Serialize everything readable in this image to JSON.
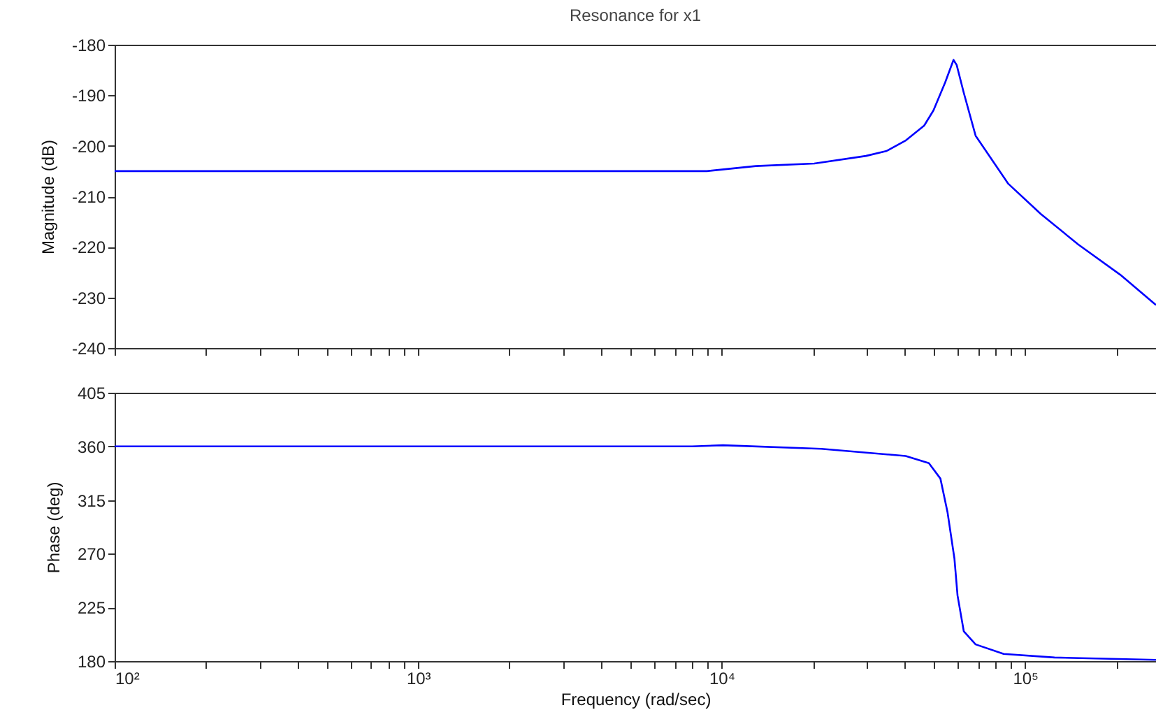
{
  "chart_data": [
    {
      "type": "line",
      "title": "Resonance for x1",
      "ylabel": "Magnitude (dB)",
      "log": "x",
      "tick_labels": "y",
      "color": "#0000ff",
      "x": [
        100,
        8950,
        12970,
        20200,
        29900,
        35000,
        40300,
        46500,
        49900,
        54500,
        58100,
        59500,
        62800,
        68700,
        88000,
        112700,
        149600,
        205800,
        270000
      ],
      "values": [
        -205,
        -205,
        -204,
        -203.5,
        -202,
        -201,
        -199,
        -196,
        -193,
        -187.5,
        -183,
        -184,
        -189.5,
        -198,
        -207.5,
        -213.5,
        -219.5,
        -225.5,
        -231.5
      ],
      "xlim": [
        100,
        270000
      ],
      "ylim": [
        -240,
        -180
      ],
      "yticks": [
        -240,
        -230,
        -220,
        -210,
        -200,
        -190,
        -180
      ],
      "xticks": [
        {
          "value": 100,
          "label": null
        },
        {
          "value": 200,
          "label": null
        },
        {
          "value": 300,
          "label": null
        },
        {
          "value": 400,
          "label": null
        },
        {
          "value": 500,
          "label": null
        },
        {
          "value": 600,
          "label": null
        },
        {
          "value": 700,
          "label": null
        },
        {
          "value": 800,
          "label": null
        },
        {
          "value": 900,
          "label": null
        },
        {
          "value": 1000,
          "label": null
        },
        {
          "value": 2000,
          "label": null
        },
        {
          "value": 3000,
          "label": null
        },
        {
          "value": 4000,
          "label": null
        },
        {
          "value": 5000,
          "label": null
        },
        {
          "value": 6000,
          "label": null
        },
        {
          "value": 7000,
          "label": null
        },
        {
          "value": 8000,
          "label": null
        },
        {
          "value": 9000,
          "label": null
        },
        {
          "value": 10000,
          "label": null
        },
        {
          "value": 20000,
          "label": null
        },
        {
          "value": 30000,
          "label": null
        },
        {
          "value": 40000,
          "label": null
        },
        {
          "value": 50000,
          "label": null
        },
        {
          "value": 60000,
          "label": null
        },
        {
          "value": 70000,
          "label": null
        },
        {
          "value": 80000,
          "label": null
        },
        {
          "value": 90000,
          "label": null
        },
        {
          "value": 100000,
          "label": null
        },
        {
          "value": 200000,
          "label": null
        }
      ]
    },
    {
      "type": "line",
      "xlabel": "Frequency (rad/sec)",
      "ylabel": "Phase (deg)",
      "log": "x",
      "color": "#0000ff",
      "x": [
        100,
        8000,
        10100,
        21300,
        40400,
        48200,
        52600,
        55500,
        58500,
        59900,
        62800,
        68700,
        85000,
        125000,
        270000
      ],
      "values": [
        360,
        360,
        361,
        358,
        352,
        346,
        333,
        305,
        266,
        235,
        205,
        194,
        186,
        183,
        181
      ],
      "xlim": [
        100,
        270000
      ],
      "ylim": [
        180,
        405
      ],
      "yticks": [
        180,
        225,
        270,
        315,
        360,
        405
      ],
      "xticks": [
        {
          "value": 100,
          "label": "10²"
        },
        {
          "value": 200,
          "label": null
        },
        {
          "value": 300,
          "label": null
        },
        {
          "value": 400,
          "label": null
        },
        {
          "value": 500,
          "label": null
        },
        {
          "value": 600,
          "label": null
        },
        {
          "value": 700,
          "label": null
        },
        {
          "value": 800,
          "label": null
        },
        {
          "value": 900,
          "label": null
        },
        {
          "value": 1000,
          "label": "10³"
        },
        {
          "value": 2000,
          "label": null
        },
        {
          "value": 3000,
          "label": null
        },
        {
          "value": 4000,
          "label": null
        },
        {
          "value": 5000,
          "label": null
        },
        {
          "value": 6000,
          "label": null
        },
        {
          "value": 7000,
          "label": null
        },
        {
          "value": 8000,
          "label": null
        },
        {
          "value": 9000,
          "label": null
        },
        {
          "value": 10000,
          "label": "10⁴"
        },
        {
          "value": 20000,
          "label": null
        },
        {
          "value": 30000,
          "label": null
        },
        {
          "value": 40000,
          "label": null
        },
        {
          "value": 50000,
          "label": null
        },
        {
          "value": 60000,
          "label": null
        },
        {
          "value": 70000,
          "label": null
        },
        {
          "value": 80000,
          "label": null
        },
        {
          "value": 90000,
          "label": null
        },
        {
          "value": 100000,
          "label": "10⁵"
        },
        {
          "value": 200000,
          "label": null
        }
      ]
    }
  ]
}
